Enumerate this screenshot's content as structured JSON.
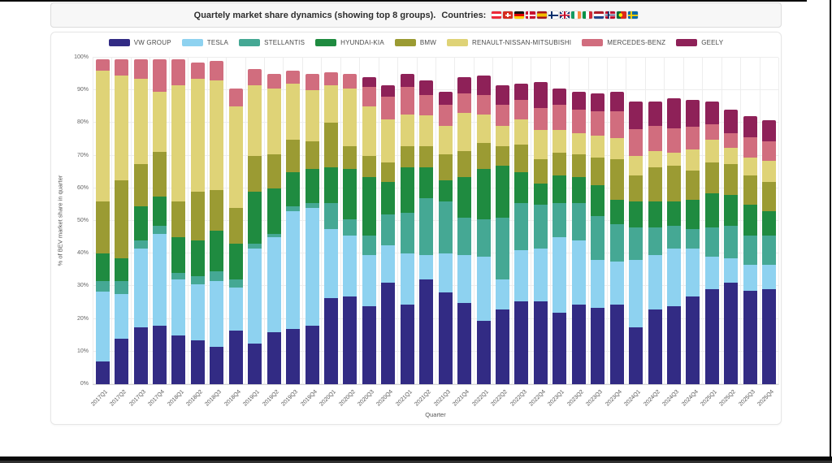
{
  "header": {
    "title": "Quartely market share dynamics (showing top 8 groups).",
    "countries_label": "Countries:",
    "countries": [
      "austria",
      "switzerland",
      "germany",
      "denmark",
      "spain",
      "finland",
      "uk",
      "ireland",
      "italy",
      "netherlands",
      "norway",
      "portugal",
      "sweden"
    ]
  },
  "chart_data": {
    "type": "bar",
    "stacked": true,
    "xlabel": "Quarter",
    "ylabel": "% of BEV market share in quarter",
    "ylim": [
      0,
      100
    ],
    "ytick_step": 10,
    "ytick_suffix": "%",
    "grid": true,
    "legend_position": "top",
    "categories": [
      "2017Q1",
      "2017Q2",
      "2017Q3",
      "2017Q4",
      "2018Q1",
      "2018Q2",
      "2018Q3",
      "2018Q4",
      "2019Q1",
      "2019Q2",
      "2019Q3",
      "2019Q4",
      "2020Q1",
      "2020Q2",
      "2020Q3",
      "2020Q4",
      "2021Q1",
      "2021Q2",
      "2021Q3",
      "2021Q4",
      "2022Q1",
      "2022Q2",
      "2022Q3",
      "2022Q4",
      "2023Q1",
      "2023Q2",
      "2023Q3",
      "2023Q4",
      "2024Q1",
      "2024Q2",
      "2024Q3",
      "2024Q4",
      "2025Q1",
      "2025Q2",
      "2025Q3",
      "2025Q4"
    ],
    "series": [
      {
        "name": "VW GROUP",
        "color": "#322b84",
        "values": [
          7,
          14,
          17.5,
          18,
          15,
          13.5,
          11.5,
          16.5,
          12.5,
          16,
          17,
          18,
          26.5,
          27,
          24,
          31,
          24.5,
          32,
          28,
          25,
          19.5,
          23,
          25.5,
          25.5,
          22,
          24.5,
          23.5,
          24.5,
          17.5,
          23,
          24,
          27,
          29,
          31,
          28.5,
          29
        ]
      },
      {
        "name": "TESLA",
        "color": "#8ed2f0",
        "values": [
          21.5,
          13.5,
          24,
          28,
          17,
          17,
          20,
          13,
          29,
          29,
          36,
          36,
          21,
          18.5,
          15.5,
          11.5,
          15.5,
          7.5,
          12,
          14.5,
          19.5,
          9,
          15.5,
          16,
          23,
          19.5,
          14.5,
          13,
          20.5,
          16.5,
          17.5,
          14.5,
          10,
          7.5,
          8,
          7.5
        ]
      },
      {
        "name": "STELLANTIS",
        "color": "#45a894",
        "values": [
          3,
          4,
          2.5,
          2.5,
          2,
          2.5,
          3,
          2.5,
          1.5,
          1,
          1.5,
          1.5,
          8,
          5,
          6,
          9.5,
          12.5,
          17.5,
          16,
          11.5,
          11.5,
          19,
          14.5,
          13.5,
          10.5,
          11.5,
          13.5,
          11.5,
          10,
          8.5,
          7,
          6,
          9,
          10,
          9,
          9
        ]
      },
      {
        "name": "HYUNDAI-KIA",
        "color": "#1f8b40",
        "values": [
          8.5,
          7,
          10.5,
          9,
          11,
          11,
          12.5,
          11,
          16,
          14,
          10.5,
          10.5,
          11,
          15.5,
          18,
          10,
          14,
          9.5,
          6.5,
          12.5,
          15.5,
          16,
          9.5,
          6.5,
          8.5,
          8,
          9.5,
          7.5,
          8,
          8,
          7.5,
          9,
          10.5,
          9.5,
          9.5,
          7.5
        ]
      },
      {
        "name": "BMW",
        "color": "#9b9b33",
        "values": [
          16,
          24,
          13,
          13.5,
          11,
          15,
          12.5,
          11,
          11,
          10.5,
          10,
          8.5,
          13.5,
          7,
          6.5,
          6,
          6.5,
          6.5,
          8,
          8,
          8,
          6,
          8.5,
          7.5,
          7,
          7,
          8.5,
          12.5,
          8,
          10.5,
          11,
          9,
          9.5,
          9.5,
          9,
          9
        ]
      },
      {
        "name": "RENAULT-NISSAN-MITSUBISHI",
        "color": "#dfd377",
        "values": [
          40,
          32,
          26,
          18.5,
          35.5,
          34.5,
          33.5,
          31,
          21.5,
          20,
          17,
          15.5,
          11.5,
          17.5,
          15,
          13,
          9.5,
          9.5,
          8.5,
          11.5,
          8.5,
          6,
          7.5,
          9,
          7,
          6.5,
          6.5,
          6.5,
          6,
          5,
          4,
          6.5,
          7,
          5,
          5.5,
          6.5
        ]
      },
      {
        "name": "MERCEDES-BENZ",
        "color": "#d16d7e",
        "values": [
          3.5,
          5,
          6,
          10,
          8,
          5,
          6,
          5.5,
          5,
          4.5,
          4,
          5,
          4,
          4.5,
          6,
          7,
          8.5,
          6,
          6.5,
          6,
          6,
          6.5,
          6,
          6.5,
          7.5,
          7,
          7.5,
          8,
          8,
          7.5,
          7.5,
          7,
          4.5,
          4.5,
          6,
          6
        ]
      },
      {
        "name": "GEELY",
        "color": "#8e2158",
        "values": [
          0,
          0,
          0,
          0,
          0,
          0,
          0,
          0,
          0,
          0,
          0,
          0,
          0,
          0,
          3,
          3.5,
          4,
          4.5,
          4,
          5,
          6,
          6,
          5,
          8,
          5,
          5.5,
          5.5,
          6,
          8.5,
          7.5,
          9,
          8,
          7,
          7,
          6.5,
          6.5
        ]
      }
    ]
  }
}
